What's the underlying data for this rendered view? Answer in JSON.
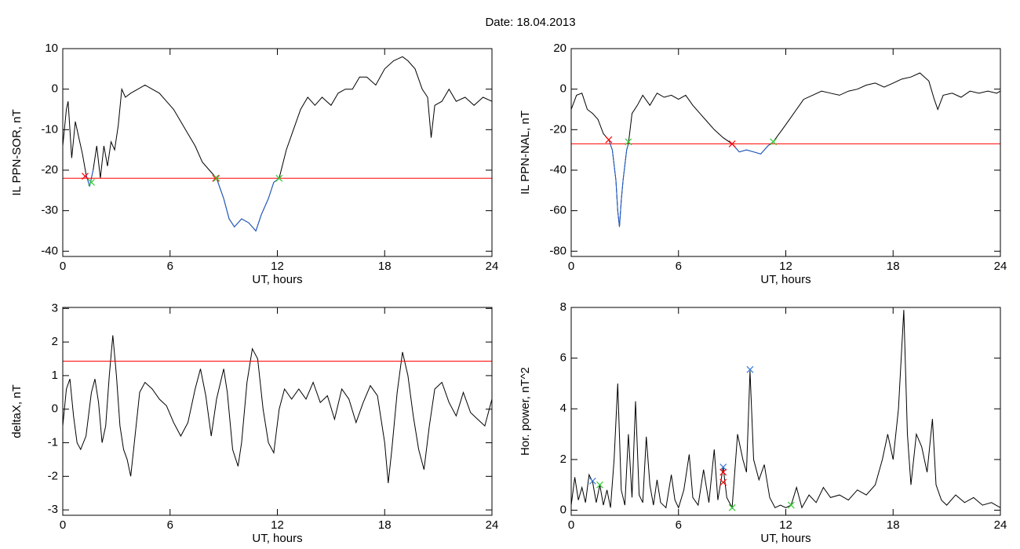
{
  "title": "Date:  18.04.2013",
  "chart_data": [
    {
      "type": "line",
      "xlabel": "UT, hours",
      "ylabel": "IL PPN-SOR, nT",
      "xlim": [
        0,
        24
      ],
      "ylim": [
        -41.3,
        10
      ],
      "xticks": [
        0,
        6,
        12,
        18,
        24
      ],
      "yticks": [
        -40,
        -30,
        -20,
        -10,
        0,
        10
      ],
      "hline": -22,
      "hline_color": "#ff0000",
      "series": [
        {
          "color": "#000000",
          "x": [
            0,
            0.2,
            0.3,
            0.5,
            0.7,
            0.9,
            1.1,
            1.3,
            1.5,
            1.7,
            1.9,
            2.1,
            2.3,
            2.5,
            2.7,
            2.9,
            3.1,
            3.3,
            3.5,
            3.8,
            4.2,
            4.6,
            5.0,
            5.4,
            5.8,
            6.2,
            6.6,
            7.0,
            7.4,
            7.8,
            8.2,
            8.6,
            9.0,
            9.3,
            9.6,
            10.0,
            10.4,
            10.8,
            11.1,
            11.5,
            11.8,
            12.1,
            12.5,
            12.9,
            13.3,
            13.7,
            14.1,
            14.5,
            15.0,
            15.4,
            15.8,
            16.2,
            16.6,
            17.0,
            17.5,
            18.0,
            18.5,
            19.0,
            19.3,
            19.7,
            20.1,
            20.4,
            20.6,
            20.8,
            21.2,
            21.6,
            22.0,
            22.5,
            23.0,
            23.5,
            24
          ],
          "values": [
            -14,
            -5,
            -3,
            -17,
            -8,
            -12,
            -16,
            -21,
            -24,
            -20,
            -14,
            -22,
            -14,
            -19,
            -13,
            -15,
            -9,
            0,
            -2,
            -1,
            0,
            1,
            0,
            -1,
            -3,
            -5,
            -8,
            -11,
            -14,
            -18,
            -20,
            -22,
            -27,
            -32,
            -34,
            -32,
            -33,
            -35,
            -31,
            -27,
            -23,
            -22,
            -15,
            -10,
            -5,
            -2,
            -4,
            -2,
            -4,
            -1,
            0,
            0,
            3,
            3,
            1,
            5,
            7,
            8,
            7,
            5,
            0,
            -2,
            -12,
            -4,
            -3,
            0,
            -3,
            -2,
            -4,
            -2,
            -3
          ]
        },
        {
          "color": "#1f5fd0",
          "x": [
            1.3,
            1.5,
            1.7,
            null,
            8.6,
            9.0,
            9.3,
            9.6,
            10.0,
            10.4,
            10.8,
            11.1,
            11.5,
            11.8,
            12.1
          ],
          "values": [
            -21,
            -24,
            -20,
            null,
            -22,
            -27,
            -32,
            -34,
            -32,
            -33,
            -35,
            -31,
            -27,
            -23,
            -22
          ]
        }
      ],
      "markers": [
        {
          "color": "#ff0000",
          "x": [
            1.25,
            8.55
          ],
          "values": [
            -21.5,
            -22
          ]
        },
        {
          "color": "#33cc33",
          "x": [
            1.6,
            8.6,
            12.1
          ],
          "values": [
            -23,
            -22,
            -22
          ]
        }
      ]
    },
    {
      "type": "line",
      "xlabel": "UT, hours",
      "ylabel": "IL PPN-NAL, nT",
      "xlim": [
        0,
        24
      ],
      "ylim": [
        -82.6,
        20
      ],
      "xticks": [
        0,
        6,
        12,
        18,
        24
      ],
      "yticks": [
        -80,
        -60,
        -40,
        -20,
        0,
        20
      ],
      "hline": -27,
      "hline_color": "#ff0000",
      "series": [
        {
          "color": "#000000",
          "x": [
            0,
            0.3,
            0.6,
            0.9,
            1.2,
            1.5,
            1.8,
            2.1,
            2.3,
            2.5,
            2.6,
            2.7,
            2.8,
            2.9,
            3.1,
            3.2,
            3.4,
            3.7,
            4.0,
            4.4,
            4.8,
            5.2,
            5.6,
            6.0,
            6.4,
            6.8,
            7.2,
            7.6,
            8.0,
            8.5,
            9.0,
            9.4,
            9.8,
            10.2,
            10.6,
            11.0,
            11.3,
            11.8,
            12.2,
            12.6,
            13.0,
            13.5,
            14.0,
            14.5,
            15.0,
            15.5,
            16.0,
            16.5,
            17.0,
            17.5,
            18.0,
            18.5,
            19.0,
            19.5,
            20.0,
            20.3,
            20.5,
            20.8,
            21.3,
            21.8,
            22.3,
            22.8,
            23.3,
            23.8,
            24
          ],
          "values": [
            -10,
            -3,
            -2,
            -10,
            -12,
            -15,
            -22,
            -25,
            -30,
            -45,
            -60,
            -68,
            -55,
            -45,
            -30,
            -27,
            -12,
            -8,
            -3,
            -8,
            -2,
            -4,
            -3,
            -5,
            -3,
            -8,
            -12,
            -16,
            -20,
            -24,
            -27,
            -31,
            -30,
            -31,
            -32,
            -28,
            -26,
            -20,
            -15,
            -10,
            -5,
            -3,
            -1,
            -2,
            -3,
            -1,
            0,
            2,
            3,
            1,
            3,
            5,
            6,
            8,
            4,
            -5,
            -10,
            -3,
            -2,
            -4,
            -1,
            -2,
            -1,
            -2,
            -1
          ]
        },
        {
          "color": "#1f5fd0",
          "x": [
            2.1,
            2.3,
            2.5,
            2.6,
            2.7,
            2.8,
            2.9,
            3.1,
            3.2,
            null,
            9.0,
            9.4,
            9.8,
            10.2,
            10.6,
            11.0,
            11.3
          ],
          "values": [
            -25,
            -30,
            -45,
            -60,
            -68,
            -55,
            -45,
            -30,
            -27,
            null,
            -27,
            -31,
            -30,
            -31,
            -32,
            -28,
            -26
          ]
        }
      ],
      "markers": [
        {
          "color": "#ff0000",
          "x": [
            2.1,
            9.0
          ],
          "values": [
            -25,
            -27
          ]
        },
        {
          "color": "#33cc33",
          "x": [
            3.2,
            11.3
          ],
          "values": [
            -26,
            -26
          ]
        }
      ]
    },
    {
      "type": "line",
      "xlabel": "UT, hours",
      "ylabel": "deltaX, nT",
      "xlim": [
        0,
        24
      ],
      "ylim": [
        -3.16,
        3.03
      ],
      "xticks": [
        0,
        6,
        12,
        18,
        24
      ],
      "yticks": [
        -3,
        -2,
        -1,
        0,
        1,
        2,
        3
      ],
      "hline": 1.43,
      "hline_color": "#ff0000",
      "series": [
        {
          "color": "#000000",
          "x": [
            0,
            0.2,
            0.4,
            0.6,
            0.8,
            1.0,
            1.3,
            1.6,
            1.8,
            2.0,
            2.2,
            2.4,
            2.6,
            2.8,
            3.0,
            3.2,
            3.4,
            3.6,
            3.8,
            4.0,
            4.3,
            4.6,
            5.0,
            5.4,
            5.8,
            6.2,
            6.6,
            7.0,
            7.4,
            7.7,
            8.0,
            8.3,
            8.6,
            9.0,
            9.2,
            9.5,
            9.8,
            10.0,
            10.3,
            10.6,
            10.9,
            11.2,
            11.5,
            11.8,
            12.1,
            12.4,
            12.8,
            13.2,
            13.6,
            14.0,
            14.4,
            14.8,
            15.2,
            15.6,
            16.0,
            16.4,
            16.8,
            17.2,
            17.6,
            18.0,
            18.2,
            18.4,
            18.7,
            19.0,
            19.3,
            19.6,
            19.9,
            20.2,
            20.5,
            20.8,
            21.2,
            21.6,
            22.0,
            22.4,
            22.8,
            23.2,
            23.6,
            24
          ],
          "values": [
            -0.5,
            0.6,
            0.9,
            -0.2,
            -1.0,
            -1.2,
            -0.8,
            0.5,
            0.9,
            0.2,
            -1.0,
            -0.5,
            1.0,
            2.2,
            1.0,
            -0.5,
            -1.2,
            -1.5,
            -2.0,
            -1.0,
            0.5,
            0.8,
            0.6,
            0.3,
            0.1,
            -0.4,
            -0.8,
            -0.4,
            0.6,
            1.2,
            0.4,
            -0.8,
            0.3,
            1.2,
            0.5,
            -1.2,
            -1.7,
            -1.0,
            0.8,
            1.8,
            1.5,
            0,
            -1.0,
            -1.3,
            0,
            0.6,
            0.3,
            0.6,
            0.3,
            0.8,
            0.2,
            0.4,
            -0.3,
            0.6,
            0.3,
            -0.4,
            0.2,
            0.7,
            0.4,
            -1.0,
            -2.2,
            -1.2,
            0.5,
            1.7,
            1.0,
            -0.2,
            -1.2,
            -1.8,
            -0.5,
            0.6,
            0.8,
            0.2,
            -0.2,
            0.5,
            -0.1,
            -0.3,
            -0.5,
            0.3
          ]
        }
      ],
      "markers": []
    },
    {
      "type": "line",
      "xlabel": "UT, hours",
      "ylabel": "Hor. power, nT^2",
      "xlim": [
        0,
        24
      ],
      "ylim": [
        -0.2,
        8.0
      ],
      "xticks": [
        0,
        6,
        12,
        18,
        24
      ],
      "yticks": [
        0,
        2,
        4,
        6,
        8
      ],
      "series": [
        {
          "color": "#000000",
          "x": [
            0,
            0.2,
            0.4,
            0.6,
            0.8,
            1.0,
            1.2,
            1.4,
            1.6,
            1.8,
            2.0,
            2.2,
            2.4,
            2.6,
            2.8,
            3.0,
            3.2,
            3.4,
            3.6,
            3.8,
            4.0,
            4.2,
            4.4,
            4.6,
            4.8,
            5.0,
            5.3,
            5.6,
            5.8,
            6.0,
            6.3,
            6.6,
            6.8,
            7.1,
            7.4,
            7.7,
            8.0,
            8.2,
            8.5,
            8.7,
            9.0,
            9.3,
            9.6,
            9.8,
            10.0,
            10.2,
            10.5,
            10.8,
            11.1,
            11.4,
            11.7,
            12.0,
            12.3,
            12.6,
            12.9,
            13.3,
            13.7,
            14.1,
            14.5,
            15.0,
            15.5,
            16.0,
            16.5,
            17.0,
            17.4,
            17.7,
            18.0,
            18.3,
            18.6,
            18.8,
            19.0,
            19.3,
            19.6,
            19.9,
            20.2,
            20.4,
            20.7,
            21.0,
            21.5,
            22.0,
            22.5,
            23.0,
            23.5,
            24
          ],
          "values": [
            0.2,
            1.3,
            0.4,
            0.9,
            0.3,
            1.4,
            1.1,
            0.3,
            1.0,
            0.2,
            0.8,
            0.1,
            2.0,
            5.0,
            0.8,
            0.2,
            3.0,
            0.5,
            4.3,
            0.6,
            0.3,
            2.9,
            1.0,
            0.2,
            1.2,
            0.3,
            0.1,
            1.4,
            0.4,
            0.1,
            0.8,
            2.2,
            0.5,
            0.2,
            1.6,
            0.3,
            2.4,
            0.4,
            1.7,
            0.5,
            0.1,
            3.0,
            2.0,
            1.5,
            5.5,
            2.0,
            1.2,
            1.8,
            0.5,
            0.1,
            0.2,
            0.1,
            0.2,
            0.9,
            0.1,
            0.6,
            0.3,
            0.9,
            0.5,
            0.6,
            0.4,
            0.8,
            0.6,
            1.0,
            2.0,
            3.0,
            2.0,
            4.0,
            7.9,
            3.0,
            1.0,
            3.0,
            2.5,
            1.5,
            3.6,
            1.0,
            0.4,
            0.2,
            0.6,
            0.3,
            0.5,
            0.2,
            0.3,
            0.1
          ]
        }
      ],
      "markers": [
        {
          "color": "#3377dd",
          "x": [
            1.2,
            8.5,
            10.0
          ],
          "values": [
            1.15,
            1.7,
            5.55
          ]
        },
        {
          "color": "#ff0000",
          "x": [
            8.5,
            8.5
          ],
          "values": [
            1.5,
            1.1
          ]
        },
        {
          "color": "#33cc33",
          "x": [
            1.6,
            9.0,
            12.3
          ],
          "values": [
            1.0,
            0.1,
            0.2
          ]
        }
      ]
    }
  ]
}
